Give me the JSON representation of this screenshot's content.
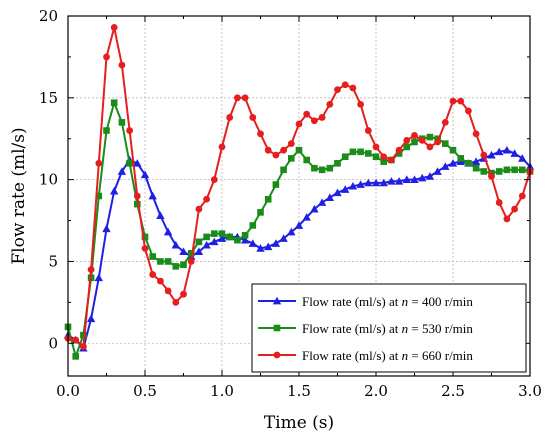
{
  "chart_data": {
    "type": "line",
    "xlabel": "Time (s)",
    "ylabel": "Flow rate (ml/s)",
    "xlim": [
      0,
      3.0
    ],
    "ylim": [
      -2,
      20
    ],
    "x_ticks": [
      0.0,
      0.5,
      1.0,
      1.5,
      2.0,
      2.5,
      3.0
    ],
    "x_tick_labels": [
      "0.0",
      "0.5",
      "1.0",
      "1.5",
      "2.0",
      "2.5",
      "3.0"
    ],
    "y_ticks": [
      0,
      5,
      10,
      15,
      20
    ],
    "y_tick_labels": [
      "0",
      "5",
      "10",
      "15",
      "20"
    ],
    "grid": true,
    "legend_position": "bottom-right",
    "colors": {
      "blue": "#1f1fe6",
      "green": "#1a8c1a",
      "red": "#e61e1e"
    },
    "series": [
      {
        "legend_prefix": "Flow rate (ml/s) at ",
        "legend_var": "n",
        "legend_suffix": " = 400 r/min",
        "color": "#1f1fe6",
        "marker": "triangle",
        "x": [
          0.0,
          0.05,
          0.1,
          0.15,
          0.2,
          0.25,
          0.3,
          0.35,
          0.4,
          0.45,
          0.5,
          0.55,
          0.6,
          0.65,
          0.7,
          0.75,
          0.8,
          0.85,
          0.9,
          0.95,
          1.0,
          1.05,
          1.1,
          1.15,
          1.2,
          1.25,
          1.3,
          1.35,
          1.4,
          1.45,
          1.5,
          1.55,
          1.6,
          1.65,
          1.7,
          1.75,
          1.8,
          1.85,
          1.9,
          1.95,
          2.0,
          2.05,
          2.1,
          2.15,
          2.2,
          2.25,
          2.3,
          2.35,
          2.4,
          2.45,
          2.5,
          2.55,
          2.6,
          2.65,
          2.7,
          2.75,
          2.8,
          2.85,
          2.9,
          2.95,
          3.0
        ],
        "y": [
          0.5,
          0.2,
          -0.3,
          1.5,
          4.0,
          7.0,
          9.3,
          10.5,
          11.2,
          11.0,
          10.3,
          9.0,
          7.8,
          6.8,
          6.0,
          5.6,
          5.3,
          5.6,
          6.0,
          6.2,
          6.4,
          6.5,
          6.5,
          6.3,
          6.1,
          5.8,
          5.9,
          6.1,
          6.4,
          6.8,
          7.2,
          7.7,
          8.2,
          8.6,
          8.9,
          9.2,
          9.4,
          9.6,
          9.7,
          9.8,
          9.8,
          9.8,
          9.9,
          9.9,
          10.0,
          10.0,
          10.1,
          10.2,
          10.5,
          10.8,
          11.0,
          11.1,
          11.0,
          11.1,
          11.3,
          11.5,
          11.7,
          11.8,
          11.6,
          11.3,
          10.8
        ]
      },
      {
        "legend_prefix": "Flow rate (ml/s) at ",
        "legend_var": "n",
        "legend_suffix": " = 530 r/min",
        "color": "#1a8c1a",
        "marker": "square",
        "x": [
          0.0,
          0.05,
          0.1,
          0.15,
          0.2,
          0.25,
          0.3,
          0.35,
          0.4,
          0.45,
          0.5,
          0.55,
          0.6,
          0.65,
          0.7,
          0.75,
          0.8,
          0.85,
          0.9,
          0.95,
          1.0,
          1.05,
          1.1,
          1.15,
          1.2,
          1.25,
          1.3,
          1.35,
          1.4,
          1.45,
          1.5,
          1.55,
          1.6,
          1.65,
          1.7,
          1.75,
          1.8,
          1.85,
          1.9,
          1.95,
          2.0,
          2.05,
          2.1,
          2.15,
          2.2,
          2.25,
          2.3,
          2.35,
          2.4,
          2.45,
          2.5,
          2.55,
          2.6,
          2.65,
          2.7,
          2.75,
          2.8,
          2.85,
          2.9,
          2.95,
          3.0
        ],
        "y": [
          1.0,
          -0.8,
          0.5,
          4.0,
          9.0,
          13.0,
          14.7,
          13.5,
          11.0,
          8.5,
          6.5,
          5.3,
          5.0,
          5.0,
          4.7,
          4.8,
          5.5,
          6.2,
          6.5,
          6.7,
          6.7,
          6.5,
          6.3,
          6.6,
          7.2,
          8.0,
          8.8,
          9.7,
          10.6,
          11.3,
          11.8,
          11.2,
          10.7,
          10.6,
          10.7,
          11.0,
          11.4,
          11.7,
          11.7,
          11.6,
          11.4,
          11.1,
          11.2,
          11.6,
          12.0,
          12.3,
          12.5,
          12.6,
          12.5,
          12.2,
          11.8,
          11.3,
          11.0,
          10.7,
          10.5,
          10.4,
          10.5,
          10.6,
          10.6,
          10.6,
          10.5
        ]
      },
      {
        "legend_prefix": "Flow rate (ml/s) at ",
        "legend_var": "n",
        "legend_suffix": " = 660 r/min",
        "color": "#e61e1e",
        "marker": "circle",
        "x": [
          0.0,
          0.05,
          0.1,
          0.15,
          0.2,
          0.25,
          0.3,
          0.35,
          0.4,
          0.45,
          0.5,
          0.55,
          0.6,
          0.65,
          0.7,
          0.75,
          0.8,
          0.85,
          0.9,
          0.95,
          1.0,
          1.05,
          1.1,
          1.15,
          1.2,
          1.25,
          1.3,
          1.35,
          1.4,
          1.45,
          1.5,
          1.55,
          1.6,
          1.65,
          1.7,
          1.75,
          1.8,
          1.85,
          1.9,
          1.95,
          2.0,
          2.05,
          2.1,
          2.15,
          2.2,
          2.25,
          2.3,
          2.35,
          2.4,
          2.45,
          2.5,
          2.55,
          2.6,
          2.65,
          2.7,
          2.75,
          2.8,
          2.85,
          2.9,
          2.95,
          3.0
        ],
        "y": [
          0.3,
          0.2,
          -0.2,
          4.5,
          11.0,
          17.5,
          19.3,
          17.0,
          13.0,
          9.0,
          5.8,
          4.2,
          3.8,
          3.2,
          2.5,
          3.0,
          5.0,
          8.2,
          8.8,
          10.0,
          12.0,
          13.8,
          15.0,
          15.0,
          13.8,
          12.8,
          11.8,
          11.5,
          11.8,
          12.2,
          13.4,
          14.0,
          13.6,
          13.8,
          14.6,
          15.5,
          15.8,
          15.6,
          14.6,
          13.0,
          12.0,
          11.4,
          11.2,
          11.8,
          12.4,
          12.7,
          12.4,
          12.0,
          12.3,
          13.5,
          14.8,
          14.8,
          14.2,
          12.8,
          11.5,
          10.2,
          8.6,
          7.6,
          8.2,
          9.0,
          10.5
        ]
      }
    ]
  }
}
